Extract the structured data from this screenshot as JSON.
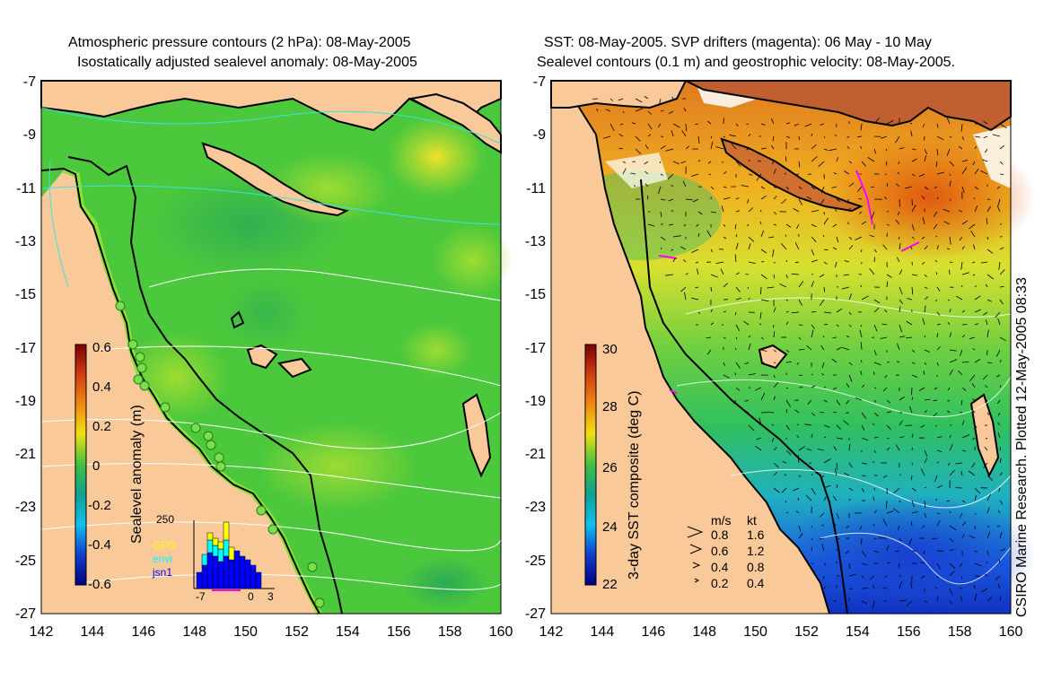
{
  "left_map": {
    "title_line1": "Atmospheric pressure contours (2 hPa): 08-May-2005",
    "title_line2": "Isostatically adjusted sealevel anomaly: 08-May-2005",
    "colorbar_label": "Sealevel anomaly (m)",
    "colorbar_ticks": [
      "0.6",
      "0.4",
      "0.2",
      "0",
      "-0.2",
      "-0.4",
      "-0.6"
    ],
    "colors": {
      "land": "#f9c99a",
      "ocean": "#49c83a",
      "contour": "#ffffff",
      "coast": "#000000"
    },
    "histogram": {
      "ymax_label": "250",
      "legend": [
        {
          "name": "GFO",
          "color": "#ffff00"
        },
        {
          "name": "envi",
          "color": "#00ffff"
        },
        {
          "name": "jsn1",
          "color": "#0000ff"
        }
      ],
      "x_tick_labels": [
        "-7",
        "0",
        "3"
      ]
    }
  },
  "right_map": {
    "title_line1": "SST: 08-May-2005. SVP drifters (magenta): 06 May - 10 May",
    "title_line2": "Sealevel contours (0.1 m) and geostrophic velocity: 08-May-2005.",
    "colorbar_label": "3-day SST composite (deg C)",
    "colorbar_ticks": [
      "30",
      "28",
      "26",
      "24",
      "22"
    ],
    "velocity_legend": {
      "header_ms": "m/s",
      "header_kt": "kt",
      "rows": [
        {
          "ms": "0.8",
          "kt": "1.6"
        },
        {
          "ms": "0.6",
          "kt": "1.2"
        },
        {
          "ms": "0.4",
          "kt": "0.8"
        },
        {
          "ms": "0.2",
          "kt": "0.4"
        }
      ]
    },
    "side_credit": "CSIRO Marine Research. Plotted 12-May-2005 08:33",
    "colors": {
      "land": "#f9c99a",
      "drifter": "#ff00ff"
    }
  },
  "axes": {
    "y_tick_labels": [
      "-7",
      "-9",
      "-11",
      "-13",
      "-15",
      "-17",
      "-19",
      "-21",
      "-23",
      "-25",
      "-27"
    ],
    "x_tick_labels": [
      "142",
      "144",
      "146",
      "148",
      "150",
      "152",
      "154",
      "156",
      "158",
      "160"
    ]
  }
}
